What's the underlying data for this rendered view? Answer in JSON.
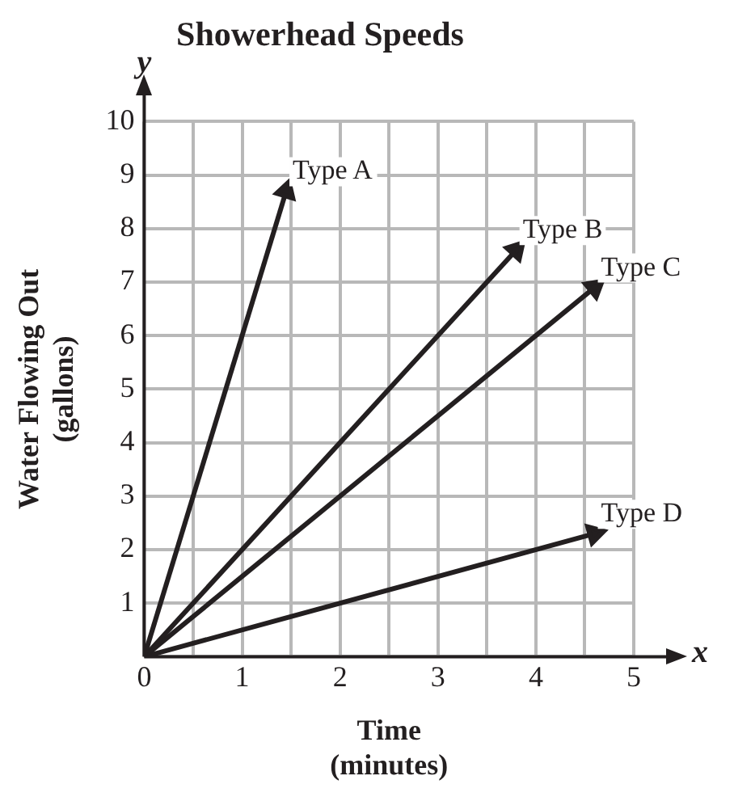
{
  "chart_data": {
    "type": "line",
    "title": "Showerhead Speeds",
    "xlabel": "Time (minutes)",
    "ylabel": "Water Flowing Out (gallons)",
    "annotations": [
      "x",
      "y"
    ],
    "xlim": [
      0,
      5
    ],
    "ylim": [
      0,
      10
    ],
    "xticks": [
      0,
      {
        "value": 0.5,
        "label": null
      },
      1,
      {
        "value": 1.5,
        "label": null
      },
      2,
      {
        "value": 2.5,
        "label": null
      },
      3,
      {
        "value": 3.5,
        "label": null
      },
      4,
      {
        "value": 4.5,
        "label": null
      },
      5
    ],
    "yticks": [
      {
        "value": 0,
        "label": null
      },
      1,
      2,
      3,
      4,
      5,
      6,
      7,
      8,
      9,
      10
    ],
    "grid": true,
    "line_style": "solid",
    "series": [
      {
        "name": "Type A",
        "color": "#231f20",
        "x": [
          0,
          1.45
        ],
        "values": [
          0,
          8.7
        ]
      },
      {
        "name": "Type B",
        "color": "#231f20",
        "x": [
          0,
          3.8
        ],
        "values": [
          0,
          7.6
        ]
      },
      {
        "name": "Type C",
        "color": "#231f20",
        "x": [
          0,
          4.6
        ],
        "values": [
          0,
          6.9
        ]
      },
      {
        "name": "Type D",
        "color": "#231f20",
        "x": [
          0,
          4.6
        ],
        "values": [
          0,
          2.3
        ]
      }
    ]
  }
}
